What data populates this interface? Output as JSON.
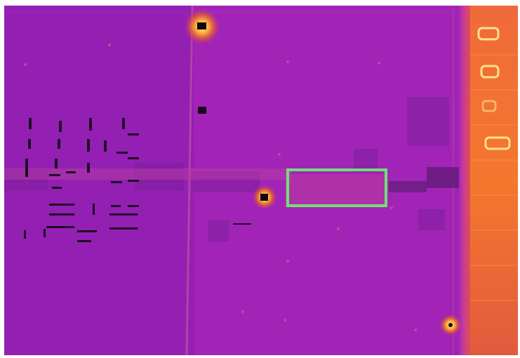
{
  "image": {
    "kind": "thermal-aerial-rooftop",
    "palette": [
      "#8a1fb0",
      "#a224b8",
      "#b630b8",
      "#c93f9c",
      "#e65a4a",
      "#f38a2a",
      "#ffd36a",
      "#1a0b1e"
    ]
  },
  "annotation": {
    "shape": "rectangle",
    "color": "#6ee07a",
    "label": ""
  }
}
